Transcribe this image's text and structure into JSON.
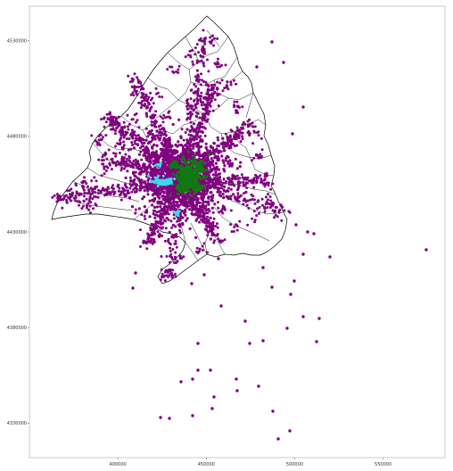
{
  "map": {
    "frame_color": "#bfbfbf",
    "border_color": "#000000",
    "colors": {
      "points": "#800080",
      "center_cluster": "#0f7a0f",
      "west_cluster": "#3fd8ee"
    },
    "x_ticks": [
      {
        "value": 400000,
        "label": "400000"
      },
      {
        "value": 450000,
        "label": "450000"
      },
      {
        "value": 500000,
        "label": "500000"
      },
      {
        "value": 550000,
        "label": "550000"
      }
    ],
    "y_ticks": [
      {
        "value": 4530000,
        "label": "4530000"
      },
      {
        "value": 4480000,
        "label": "4480000"
      },
      {
        "value": 4430000,
        "label": "4430000"
      },
      {
        "value": 4380000,
        "label": "4380000"
      },
      {
        "value": 4330000,
        "label": "4330000"
      }
    ],
    "x_range": [
      350000,
      585000
    ],
    "y_range": [
      4312000,
      4548000
    ]
  }
}
